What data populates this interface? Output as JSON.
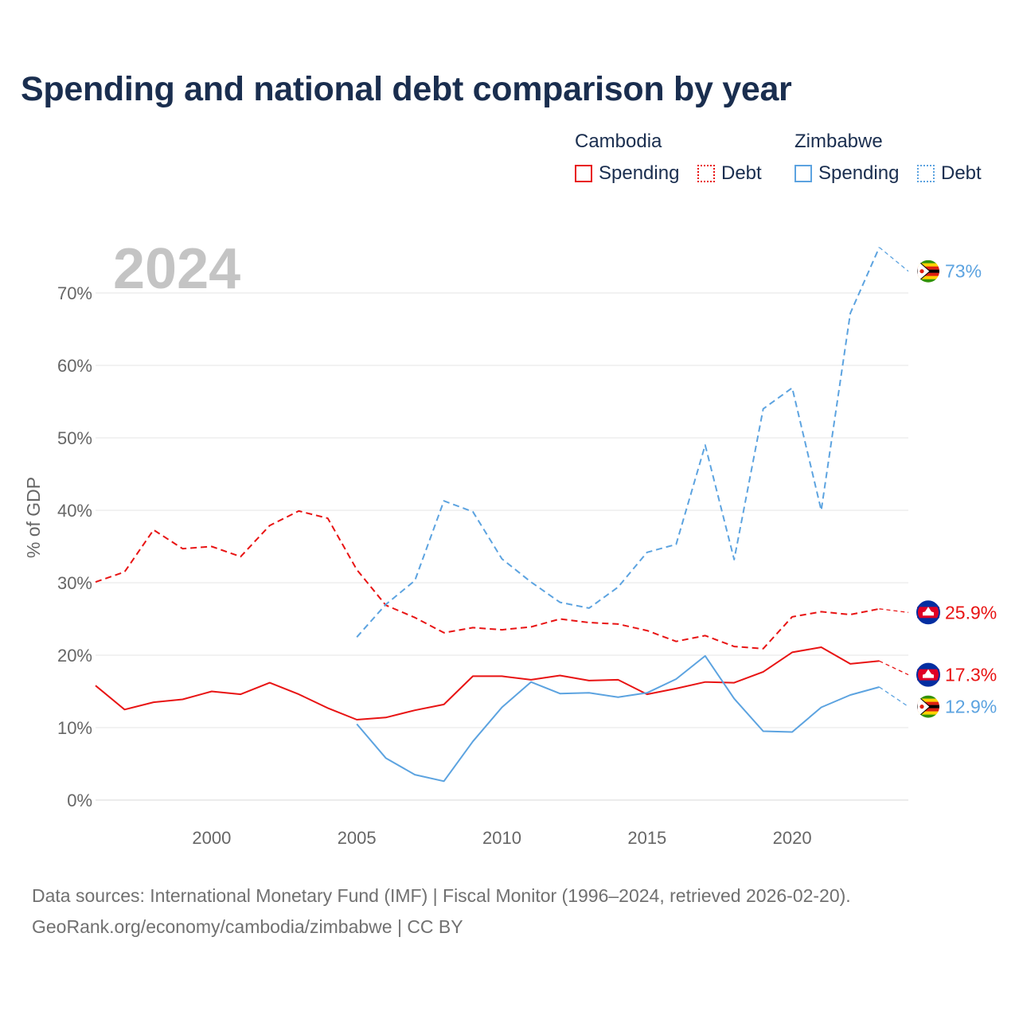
{
  "title": "Spending and national debt comparison by year",
  "legend": {
    "groups": [
      {
        "name": "Cambodia",
        "spending_label": "Spending",
        "debt_label": "Debt",
        "color": "#e81313"
      },
      {
        "name": "Zimbabwe",
        "spending_label": "Spending",
        "debt_label": "Debt",
        "color": "#5ca3e0"
      }
    ]
  },
  "source": {
    "line1": "Data sources: International Monetary Fund (IMF) | Fiscal Monitor (1996–2024, retrieved 2026-02-20).",
    "line2": "GeoRank.org/economy/cambodia/zimbabwe | CC BY"
  },
  "chart_data": {
    "type": "line",
    "title": "Spending and national debt comparison by year",
    "year_watermark": "2024",
    "ylabel": "% of GDP",
    "xlabel": "",
    "xlim": [
      1996,
      2024
    ],
    "ylim": [
      0,
      77
    ],
    "xticks": [
      2000,
      2005,
      2010,
      2015,
      2020
    ],
    "yticks": [
      0,
      10,
      20,
      30,
      40,
      50,
      60,
      70
    ],
    "ytick_labels": [
      "0%",
      "10%",
      "20%",
      "30%",
      "40%",
      "50%",
      "60%",
      "70%"
    ],
    "grid": true,
    "series": [
      {
        "name": "Cambodia Debt",
        "country": "Cambodia",
        "metric": "Debt",
        "color": "#e81313",
        "dashed": true,
        "x": [
          1996,
          1997,
          1998,
          1999,
          2000,
          2001,
          2002,
          2003,
          2004,
          2005,
          2006,
          2007,
          2008,
          2009,
          2010,
          2011,
          2012,
          2013,
          2014,
          2015,
          2016,
          2017,
          2018,
          2019,
          2020,
          2021,
          2022,
          2023,
          2024
        ],
        "values": [
          30.1,
          31.5,
          37.3,
          34.7,
          35.0,
          33.6,
          37.9,
          39.9,
          38.9,
          31.8,
          26.9,
          25.2,
          23.1,
          23.8,
          23.5,
          23.9,
          25.0,
          24.5,
          24.3,
          23.4,
          21.9,
          22.7,
          21.2,
          20.9,
          25.3,
          26.0,
          25.6,
          26.4,
          25.9
        ],
        "end_label": "25.9%"
      },
      {
        "name": "Cambodia Spending",
        "country": "Cambodia",
        "metric": "Spending",
        "color": "#e81313",
        "dashed": false,
        "x": [
          1996,
          1997,
          1998,
          1999,
          2000,
          2001,
          2002,
          2003,
          2004,
          2005,
          2006,
          2007,
          2008,
          2009,
          2010,
          2011,
          2012,
          2013,
          2014,
          2015,
          2016,
          2017,
          2018,
          2019,
          2020,
          2021,
          2022,
          2023,
          2024
        ],
        "values": [
          15.8,
          12.5,
          13.5,
          13.9,
          15.0,
          14.6,
          16.2,
          14.6,
          12.7,
          11.1,
          11.4,
          12.4,
          13.2,
          17.1,
          17.1,
          16.6,
          17.2,
          16.5,
          16.6,
          14.6,
          15.4,
          16.3,
          16.2,
          17.7,
          20.4,
          21.1,
          18.8,
          19.2,
          17.3
        ],
        "end_label": "17.3%"
      },
      {
        "name": "Zimbabwe Debt",
        "country": "Zimbabwe",
        "metric": "Debt",
        "color": "#5ca3e0",
        "dashed": true,
        "x": [
          2005,
          2006,
          2007,
          2008,
          2009,
          2010,
          2011,
          2012,
          2013,
          2014,
          2015,
          2016,
          2017,
          2018,
          2019,
          2020,
          2021,
          2022,
          2023,
          2024
        ],
        "values": [
          22.5,
          27.0,
          30.3,
          41.3,
          39.8,
          33.3,
          30.1,
          27.3,
          26.5,
          29.4,
          34.2,
          35.3,
          49.0,
          33.2,
          54.0,
          56.9,
          40.0,
          67.2,
          76.3,
          73.0
        ],
        "end_label": "73%"
      },
      {
        "name": "Zimbabwe Spending",
        "country": "Zimbabwe",
        "metric": "Spending",
        "color": "#5ca3e0",
        "dashed": false,
        "x": [
          2005,
          2006,
          2007,
          2008,
          2009,
          2010,
          2011,
          2012,
          2013,
          2014,
          2015,
          2016,
          2017,
          2018,
          2019,
          2020,
          2021,
          2022,
          2023,
          2024
        ],
        "values": [
          10.5,
          5.8,
          3.5,
          2.6,
          8.1,
          12.8,
          16.3,
          14.7,
          14.8,
          14.2,
          14.8,
          16.7,
          19.9,
          14.0,
          9.5,
          9.4,
          12.8,
          14.5,
          15.6,
          12.9
        ],
        "end_label": "12.9%"
      }
    ]
  }
}
